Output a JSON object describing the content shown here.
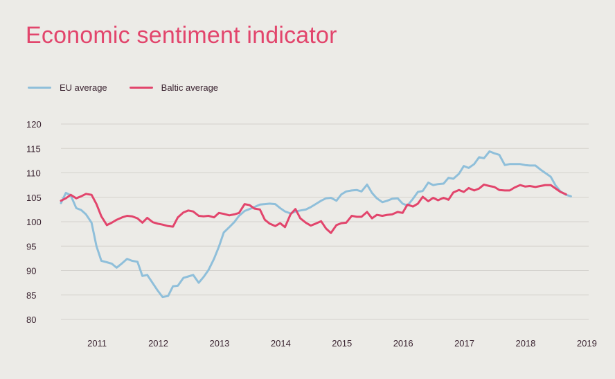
{
  "header": {
    "title": "Economic sentiment indicator"
  },
  "colors": {
    "eu": "#8fbfda",
    "baltic": "#e2456c",
    "title": "#e2456c",
    "grid": "#d3d1cc"
  },
  "chart_data": {
    "type": "line",
    "title": "Economic sentiment indicator",
    "xlabel": "",
    "ylabel": "",
    "ylim": [
      80,
      120
    ],
    "yticks": [
      80,
      85,
      90,
      95,
      100,
      105,
      110,
      115,
      120
    ],
    "xticks": [
      {
        "label": "2011",
        "x": 2011.3
      },
      {
        "label": "2012",
        "x": 2012.3
      },
      {
        "label": "2013",
        "x": 2013.3
      },
      {
        "label": "2014",
        "x": 2014.3
      },
      {
        "label": "2015",
        "x": 2015.3
      },
      {
        "label": "2016",
        "x": 2016.3
      },
      {
        "label": "2017",
        "x": 2017.3
      },
      {
        "label": "2018",
        "x": 2018.3
      },
      {
        "label": "2019",
        "x": 2019.3
      }
    ],
    "xlim": [
      2010.71,
      2019.33
    ],
    "grid": true,
    "legend": "top-left",
    "series": [
      {
        "name": "EU average",
        "color": "#8fbfda",
        "points": [
          [
            2010.71,
            103.8
          ],
          [
            2010.79,
            105.9
          ],
          [
            2010.87,
            105.4
          ],
          [
            2010.96,
            102.8
          ],
          [
            2011.04,
            102.4
          ],
          [
            2011.12,
            101.5
          ],
          [
            2011.21,
            99.8
          ],
          [
            2011.29,
            95.0
          ],
          [
            2011.37,
            92.0
          ],
          [
            2011.46,
            91.7
          ],
          [
            2011.54,
            91.4
          ],
          [
            2011.62,
            90.6
          ],
          [
            2011.71,
            91.5
          ],
          [
            2011.79,
            92.4
          ],
          [
            2011.87,
            92.0
          ],
          [
            2011.96,
            91.8
          ],
          [
            2012.04,
            88.9
          ],
          [
            2012.12,
            89.1
          ],
          [
            2012.21,
            87.4
          ],
          [
            2012.29,
            85.9
          ],
          [
            2012.37,
            84.6
          ],
          [
            2012.46,
            84.8
          ],
          [
            2012.54,
            86.8
          ],
          [
            2012.62,
            86.9
          ],
          [
            2012.71,
            88.5
          ],
          [
            2012.79,
            88.8
          ],
          [
            2012.87,
            89.1
          ],
          [
            2012.96,
            87.5
          ],
          [
            2013.04,
            88.7
          ],
          [
            2013.12,
            90.1
          ],
          [
            2013.21,
            92.4
          ],
          [
            2013.29,
            94.9
          ],
          [
            2013.37,
            97.8
          ],
          [
            2013.46,
            98.9
          ],
          [
            2013.54,
            99.9
          ],
          [
            2013.62,
            101.2
          ],
          [
            2013.71,
            102.2
          ],
          [
            2013.79,
            102.6
          ],
          [
            2013.87,
            103.0
          ],
          [
            2013.96,
            103.5
          ],
          [
            2014.04,
            103.6
          ],
          [
            2014.12,
            103.7
          ],
          [
            2014.21,
            103.6
          ],
          [
            2014.29,
            102.8
          ],
          [
            2014.37,
            102.1
          ],
          [
            2014.46,
            101.7
          ],
          [
            2014.54,
            102.1
          ],
          [
            2014.62,
            102.3
          ],
          [
            2014.71,
            102.5
          ],
          [
            2014.79,
            103.0
          ],
          [
            2014.87,
            103.6
          ],
          [
            2014.96,
            104.3
          ],
          [
            2015.04,
            104.8
          ],
          [
            2015.12,
            104.9
          ],
          [
            2015.21,
            104.3
          ],
          [
            2015.29,
            105.6
          ],
          [
            2015.37,
            106.2
          ],
          [
            2015.46,
            106.4
          ],
          [
            2015.54,
            106.5
          ],
          [
            2015.62,
            106.2
          ],
          [
            2015.71,
            107.6
          ],
          [
            2015.79,
            105.9
          ],
          [
            2015.87,
            104.8
          ],
          [
            2015.96,
            104.0
          ],
          [
            2016.04,
            104.3
          ],
          [
            2016.12,
            104.7
          ],
          [
            2016.21,
            104.8
          ],
          [
            2016.29,
            103.7
          ],
          [
            2016.37,
            103.3
          ],
          [
            2016.46,
            104.7
          ],
          [
            2016.54,
            106.1
          ],
          [
            2016.62,
            106.3
          ],
          [
            2016.71,
            108.0
          ],
          [
            2016.79,
            107.5
          ],
          [
            2016.87,
            107.7
          ],
          [
            2016.96,
            107.8
          ],
          [
            2017.04,
            109.0
          ],
          [
            2017.12,
            108.8
          ],
          [
            2017.21,
            109.8
          ],
          [
            2017.29,
            111.4
          ],
          [
            2017.37,
            111.0
          ],
          [
            2017.46,
            111.8
          ],
          [
            2017.54,
            113.2
          ],
          [
            2017.62,
            113.0
          ],
          [
            2017.71,
            114.4
          ],
          [
            2017.79,
            114.0
          ],
          [
            2017.87,
            113.7
          ],
          [
            2017.96,
            111.6
          ],
          [
            2018.04,
            111.8
          ],
          [
            2018.12,
            111.8
          ],
          [
            2018.21,
            111.8
          ],
          [
            2018.29,
            111.6
          ],
          [
            2018.37,
            111.5
          ],
          [
            2018.46,
            111.5
          ],
          [
            2018.54,
            110.7
          ],
          [
            2018.62,
            110.0
          ],
          [
            2018.71,
            109.2
          ],
          [
            2018.79,
            107.4
          ],
          [
            2018.87,
            106.2
          ],
          [
            2018.96,
            105.5
          ],
          [
            2019.04,
            105.2
          ]
        ]
      },
      {
        "name": "Baltic average",
        "color": "#e2456c",
        "points": [
          [
            2010.71,
            104.3
          ],
          [
            2010.79,
            104.8
          ],
          [
            2010.87,
            105.5
          ],
          [
            2010.96,
            104.8
          ],
          [
            2011.04,
            105.2
          ],
          [
            2011.12,
            105.7
          ],
          [
            2011.21,
            105.5
          ],
          [
            2011.29,
            103.6
          ],
          [
            2011.37,
            101.1
          ],
          [
            2011.46,
            99.3
          ],
          [
            2011.54,
            99.8
          ],
          [
            2011.62,
            100.4
          ],
          [
            2011.71,
            100.9
          ],
          [
            2011.79,
            101.2
          ],
          [
            2011.87,
            101.1
          ],
          [
            2011.96,
            100.7
          ],
          [
            2012.04,
            99.8
          ],
          [
            2012.12,
            100.8
          ],
          [
            2012.21,
            99.9
          ],
          [
            2012.29,
            99.6
          ],
          [
            2012.37,
            99.4
          ],
          [
            2012.46,
            99.1
          ],
          [
            2012.54,
            99.0
          ],
          [
            2012.62,
            100.9
          ],
          [
            2012.71,
            101.9
          ],
          [
            2012.79,
            102.3
          ],
          [
            2012.87,
            102.1
          ],
          [
            2012.96,
            101.2
          ],
          [
            2013.04,
            101.1
          ],
          [
            2013.12,
            101.2
          ],
          [
            2013.21,
            100.9
          ],
          [
            2013.29,
            101.8
          ],
          [
            2013.37,
            101.6
          ],
          [
            2013.46,
            101.3
          ],
          [
            2013.54,
            101.5
          ],
          [
            2013.62,
            101.8
          ],
          [
            2013.71,
            103.6
          ],
          [
            2013.79,
            103.4
          ],
          [
            2013.87,
            102.7
          ],
          [
            2013.96,
            102.5
          ],
          [
            2014.04,
            100.4
          ],
          [
            2014.12,
            99.6
          ],
          [
            2014.21,
            99.1
          ],
          [
            2014.29,
            99.7
          ],
          [
            2014.37,
            98.9
          ],
          [
            2014.46,
            101.5
          ],
          [
            2014.54,
            102.6
          ],
          [
            2014.62,
            100.7
          ],
          [
            2014.71,
            99.8
          ],
          [
            2014.79,
            99.2
          ],
          [
            2014.87,
            99.6
          ],
          [
            2014.96,
            100.1
          ],
          [
            2015.04,
            98.6
          ],
          [
            2015.12,
            97.7
          ],
          [
            2015.21,
            99.3
          ],
          [
            2015.29,
            99.7
          ],
          [
            2015.37,
            99.8
          ],
          [
            2015.46,
            101.2
          ],
          [
            2015.54,
            101.0
          ],
          [
            2015.62,
            101.0
          ],
          [
            2015.71,
            102.0
          ],
          [
            2015.79,
            100.7
          ],
          [
            2015.87,
            101.4
          ],
          [
            2015.96,
            101.2
          ],
          [
            2016.04,
            101.4
          ],
          [
            2016.12,
            101.5
          ],
          [
            2016.21,
            102.0
          ],
          [
            2016.29,
            101.8
          ],
          [
            2016.37,
            103.5
          ],
          [
            2016.46,
            103.1
          ],
          [
            2016.54,
            103.7
          ],
          [
            2016.62,
            105.1
          ],
          [
            2016.71,
            104.2
          ],
          [
            2016.79,
            104.9
          ],
          [
            2016.87,
            104.4
          ],
          [
            2016.96,
            104.9
          ],
          [
            2017.04,
            104.5
          ],
          [
            2017.12,
            106.0
          ],
          [
            2017.21,
            106.5
          ],
          [
            2017.29,
            106.1
          ],
          [
            2017.37,
            106.9
          ],
          [
            2017.46,
            106.4
          ],
          [
            2017.54,
            106.8
          ],
          [
            2017.62,
            107.6
          ],
          [
            2017.71,
            107.3
          ],
          [
            2017.79,
            107.1
          ],
          [
            2017.87,
            106.5
          ],
          [
            2017.96,
            106.4
          ],
          [
            2018.04,
            106.4
          ],
          [
            2018.12,
            107.0
          ],
          [
            2018.21,
            107.5
          ],
          [
            2018.29,
            107.2
          ],
          [
            2018.37,
            107.3
          ],
          [
            2018.46,
            107.1
          ],
          [
            2018.54,
            107.3
          ],
          [
            2018.62,
            107.5
          ],
          [
            2018.71,
            107.5
          ],
          [
            2018.79,
            106.8
          ],
          [
            2018.87,
            106.1
          ],
          [
            2018.96,
            105.6
          ]
        ]
      }
    ]
  }
}
